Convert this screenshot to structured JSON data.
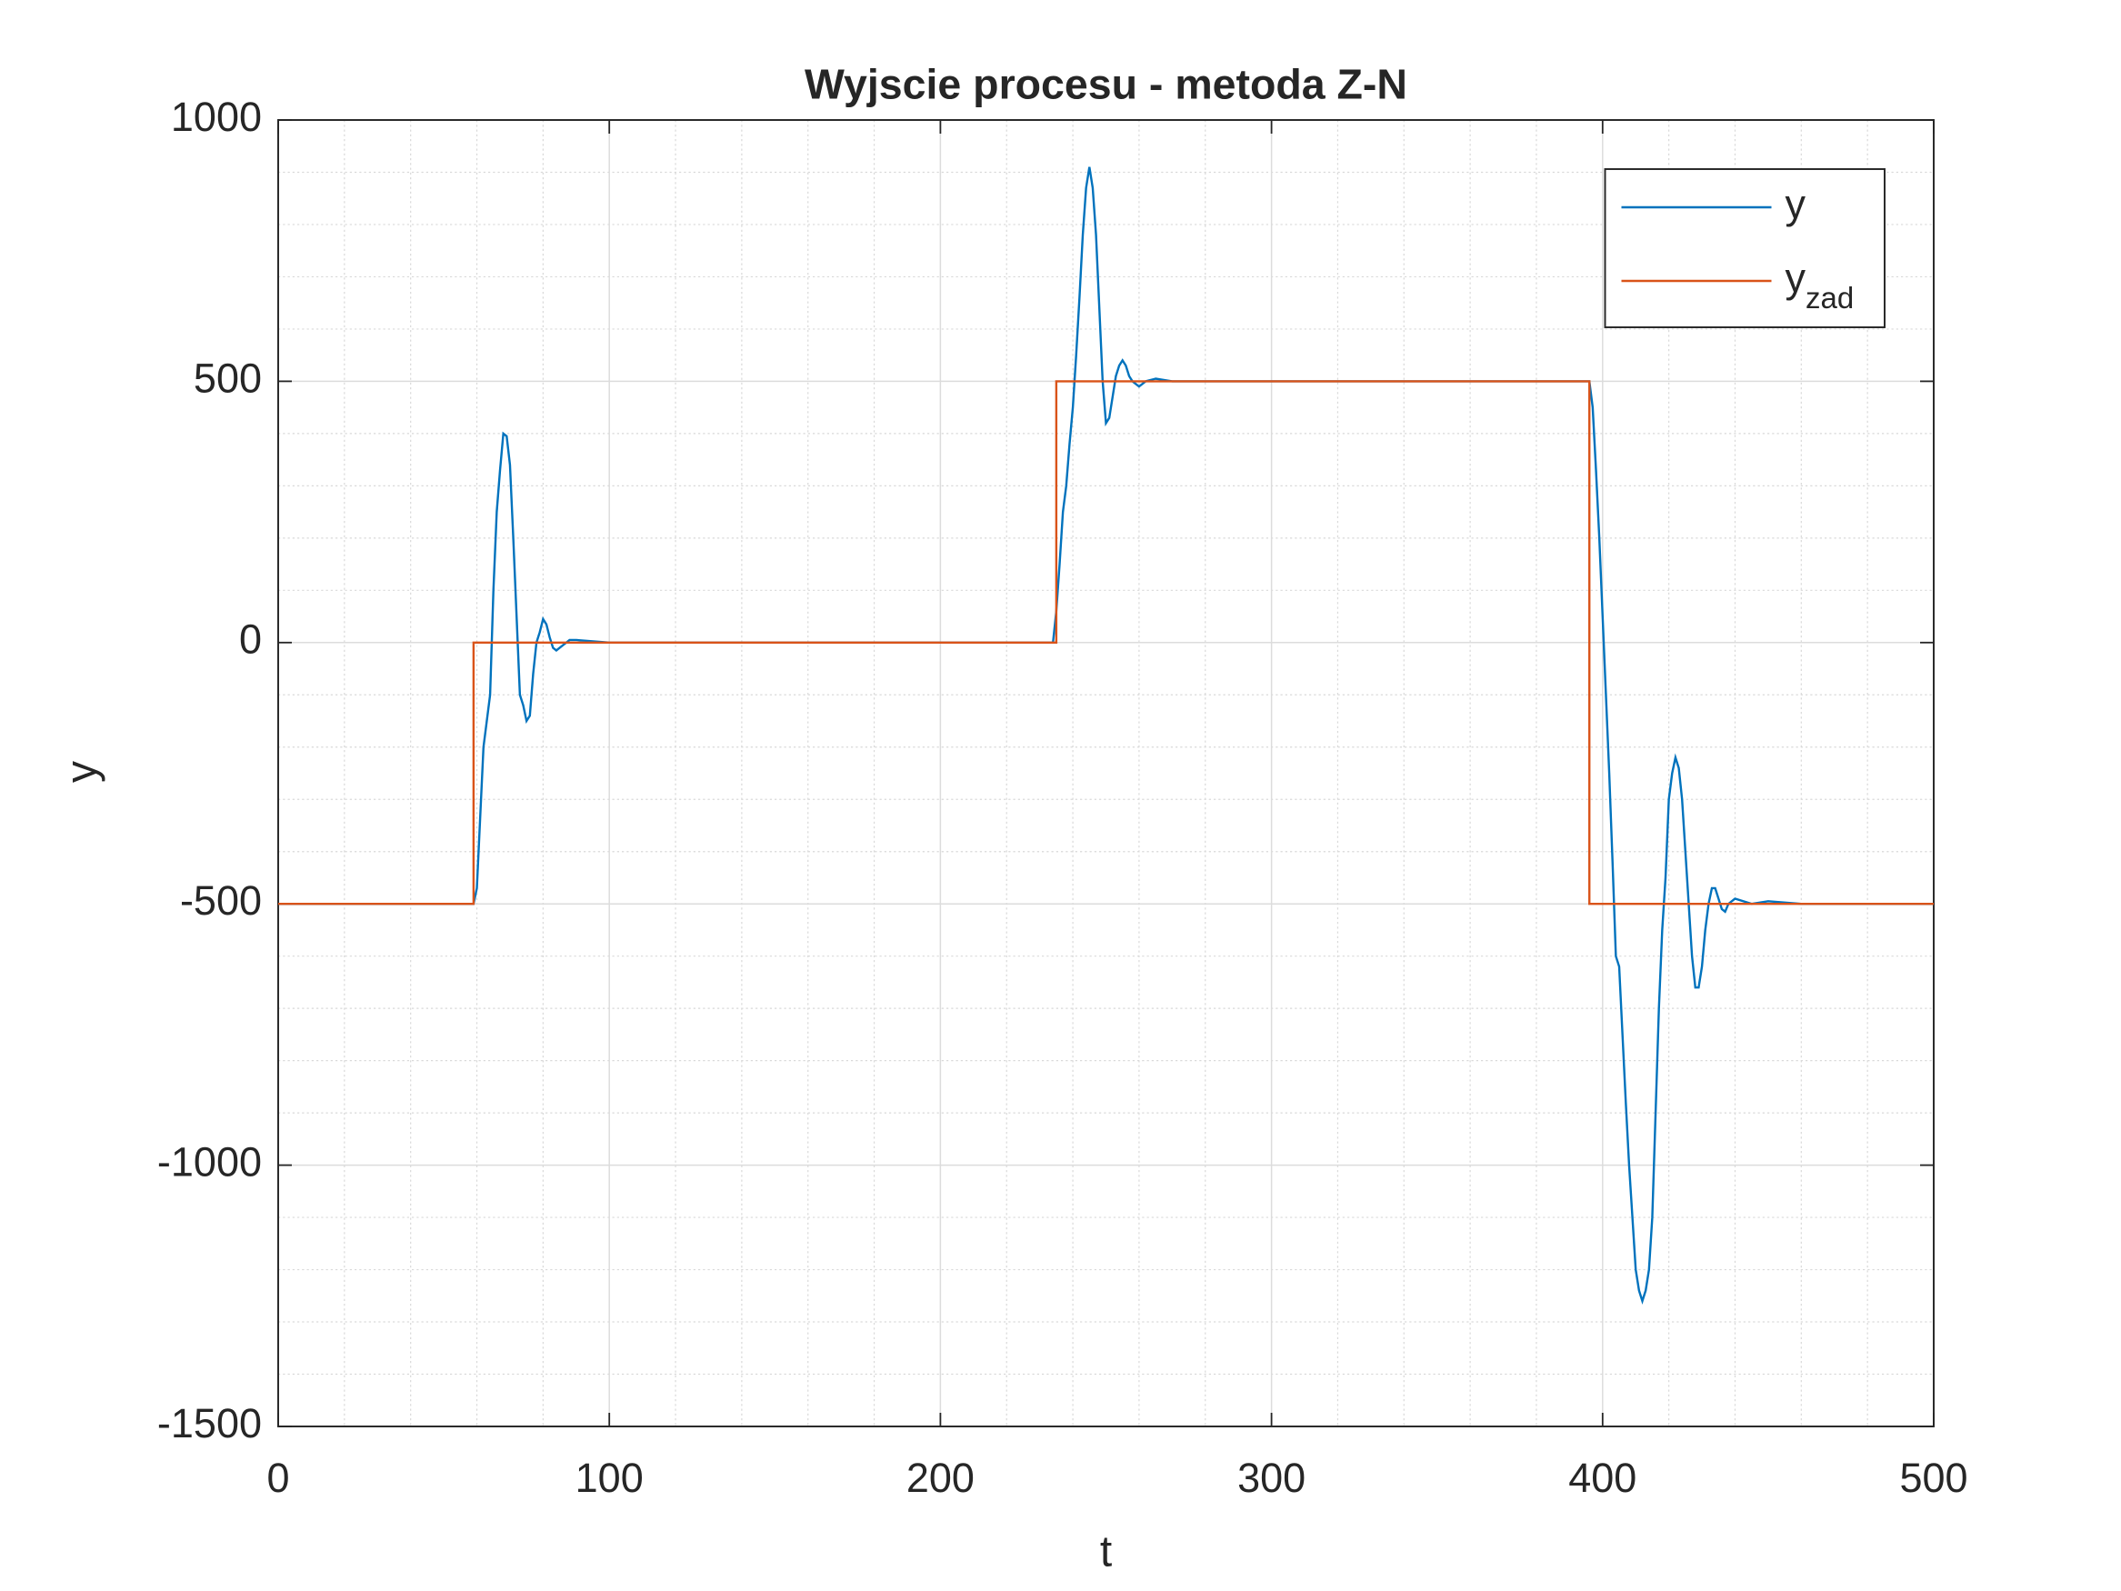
{
  "chart_data": {
    "type": "line",
    "title": "Wyjscie procesu - metoda Z-N",
    "xlabel": "t",
    "ylabel": "y",
    "xlim": [
      0,
      500
    ],
    "ylim": [
      -1500,
      1000
    ],
    "xticks": [
      0,
      100,
      200,
      300,
      400,
      500
    ],
    "yticks": [
      -1500,
      -1000,
      -500,
      0,
      500,
      1000
    ],
    "grid": true,
    "minor_grid": true,
    "legend": "northeast",
    "series": [
      {
        "name": "y",
        "color": "#0072bd",
        "x": [
          0,
          10,
          20,
          30,
          40,
          50,
          59,
          60,
          62,
          64,
          65,
          66,
          67,
          68,
          69,
          70,
          71,
          72,
          73,
          74,
          75,
          76,
          77,
          78,
          79,
          80,
          81,
          82,
          83,
          84,
          85,
          86,
          88,
          90,
          100,
          150,
          200,
          233,
          234,
          235,
          236,
          237,
          238,
          239,
          240,
          241,
          242,
          243,
          244,
          245,
          246,
          247,
          248,
          249,
          250,
          251,
          252,
          253,
          254,
          255,
          256,
          257,
          258,
          259,
          260,
          262,
          265,
          270,
          300,
          350,
          396,
          397,
          398,
          399,
          400,
          401,
          402,
          403,
          404,
          405,
          406,
          407,
          408,
          409,
          410,
          411,
          412,
          413,
          414,
          415,
          416,
          417,
          418,
          419,
          420,
          421,
          422,
          423,
          424,
          425,
          426,
          427,
          428,
          429,
          430,
          431,
          432,
          433,
          434,
          435,
          436,
          437,
          438,
          440,
          445,
          450,
          460,
          470,
          480,
          490,
          500
        ],
        "values": [
          -500,
          -500,
          -500,
          -500,
          -500,
          -500,
          -500,
          -470,
          -200,
          -100,
          100,
          250,
          330,
          400,
          395,
          340,
          200,
          50,
          -100,
          -120,
          -150,
          -140,
          -60,
          0,
          20,
          45,
          35,
          10,
          -10,
          -15,
          -10,
          -5,
          5,
          5,
          0,
          0,
          0,
          0,
          0,
          60,
          150,
          250,
          300,
          380,
          450,
          550,
          660,
          780,
          870,
          910,
          870,
          780,
          640,
          500,
          420,
          430,
          470,
          510,
          530,
          540,
          530,
          510,
          500,
          495,
          490,
          500,
          505,
          500,
          500,
          500,
          500,
          450,
          330,
          200,
          50,
          -100,
          -250,
          -420,
          -600,
          -620,
          -750,
          -880,
          -1000,
          -1100,
          -1200,
          -1240,
          -1260,
          -1240,
          -1200,
          -1100,
          -900,
          -700,
          -550,
          -450,
          -300,
          -250,
          -220,
          -240,
          -300,
          -400,
          -500,
          -600,
          -660,
          -660,
          -620,
          -550,
          -500,
          -470,
          -470,
          -490,
          -510,
          -515,
          -500,
          -490,
          -500,
          -495,
          -500,
          -500,
          -500,
          -500,
          -500
        ]
      },
      {
        "name": "y",
        "subscript": "zad",
        "color": "#d95319",
        "x": [
          0,
          59,
          59,
          235,
          235,
          396,
          396,
          500
        ],
        "values": [
          -500,
          -500,
          0,
          0,
          500,
          500,
          -500,
          -500
        ]
      }
    ]
  }
}
